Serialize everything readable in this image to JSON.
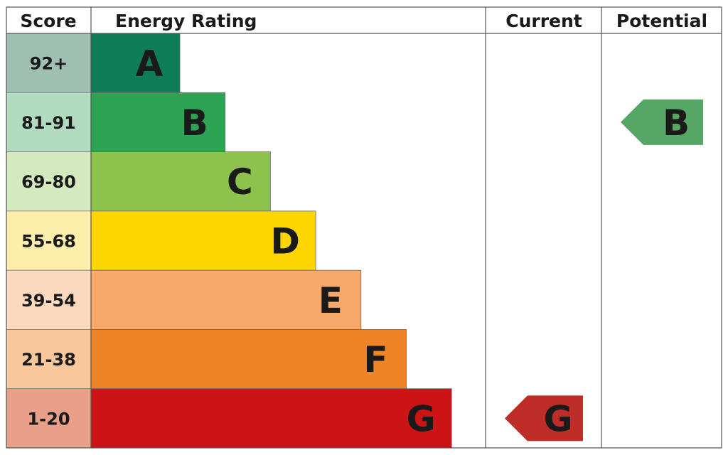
{
  "headers": {
    "score": "Score",
    "energy_rating": "Energy Rating",
    "current": "Current",
    "potential": "Potential"
  },
  "chart_data": {
    "type": "bar",
    "title": "",
    "bands": [
      {
        "letter": "A",
        "range": "92+",
        "min": 92,
        "max": 100,
        "color": "#0f7e58",
        "score_bg": "#9ebfb1"
      },
      {
        "letter": "B",
        "range": "81-91",
        "min": 81,
        "max": 91,
        "color": "#2ca454",
        "score_bg": "#b1dbbf"
      },
      {
        "letter": "C",
        "range": "69-80",
        "min": 69,
        "max": 80,
        "color": "#8dc24c",
        "score_bg": "#d5e9be"
      },
      {
        "letter": "D",
        "range": "55-68",
        "min": 55,
        "max": 68,
        "color": "#fdd500",
        "score_bg": "#feeeab"
      },
      {
        "letter": "E",
        "range": "39-54",
        "min": 39,
        "max": 54,
        "color": "#f6a96a",
        "score_bg": "#fbd9be"
      },
      {
        "letter": "F",
        "range": "21-38",
        "min": 21,
        "max": 38,
        "color": "#ee8426",
        "score_bg": "#f8c79b"
      },
      {
        "letter": "G",
        "range": "1-20",
        "min": 1,
        "max": 20,
        "color": "#cc1417",
        "score_bg": "#e8a08b"
      }
    ],
    "current": {
      "letter": "G",
      "color": "#be2d27"
    },
    "potential": {
      "letter": "B",
      "color": "#56a766"
    }
  }
}
